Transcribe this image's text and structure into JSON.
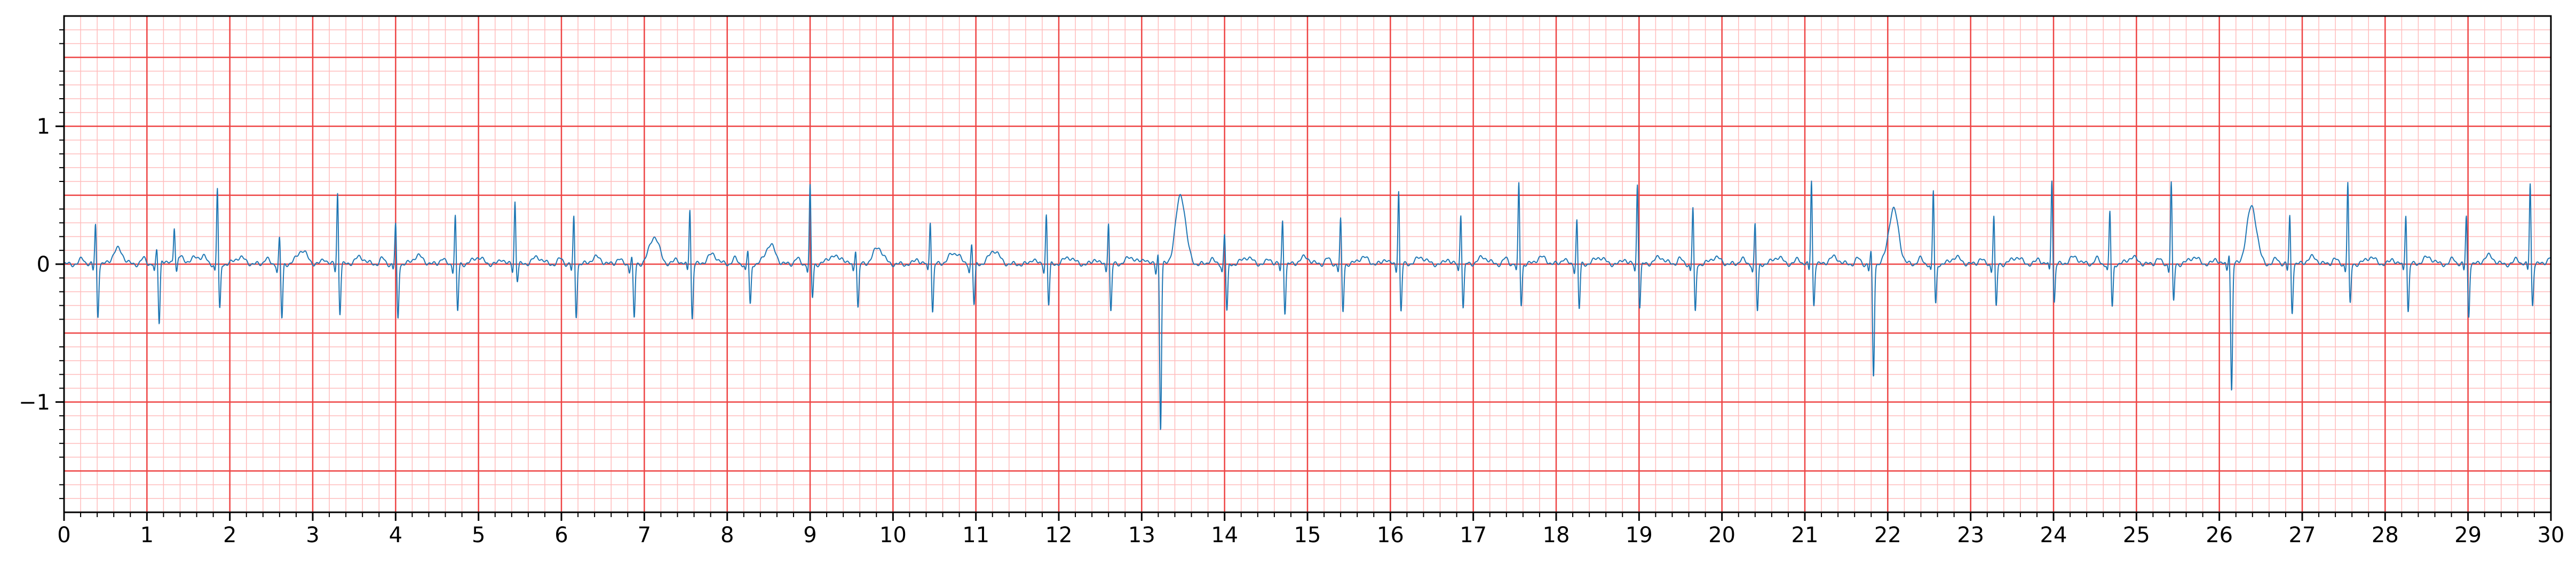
{
  "chart_data": {
    "type": "line",
    "title": "",
    "xlabel": "",
    "ylabel": "",
    "xlim": [
      0,
      30
    ],
    "ylim": [
      -1.8,
      1.8
    ],
    "xticks": [
      0,
      1,
      2,
      3,
      4,
      5,
      6,
      7,
      8,
      9,
      10,
      11,
      12,
      13,
      14,
      15,
      16,
      17,
      18,
      19,
      20,
      21,
      22,
      23,
      24,
      25,
      26,
      27,
      28,
      29,
      30
    ],
    "xtick_labels": [
      "0",
      "1",
      "2",
      "3",
      "4",
      "5",
      "6",
      "7",
      "8",
      "9",
      "10",
      "11",
      "12",
      "13",
      "14",
      "15",
      "16",
      "17",
      "18",
      "19",
      "20",
      "21",
      "22",
      "23",
      "24",
      "25",
      "26",
      "27",
      "28",
      "29",
      "30"
    ],
    "yticks": [
      -1,
      0,
      1
    ],
    "ytick_labels": [
      "−1",
      "0",
      "1"
    ],
    "grid": {
      "major_x_step": 1,
      "minor_x_step": 0.2,
      "major_y_step": 0.5,
      "minor_y_step": 0.1
    },
    "colors": {
      "line": "#1f77b4",
      "major_grid": "#ee4444",
      "minor_grid": "#ffbcbc",
      "axes": "#000000"
    },
    "series": [
      {
        "beats": [
          {
            "t": 0.38,
            "r": 0.3,
            "s": -0.38,
            "tw": 0.11,
            "q": -0.05
          },
          {
            "t": 1.12,
            "r": 0.1,
            "s": -0.46,
            "tw": 0.05,
            "q": -0.06
          },
          {
            "t": 1.33,
            "r": 0.25,
            "s": -0.1,
            "tw": 0.05,
            "q": 0.0
          },
          {
            "t": 1.85,
            "r": 0.56,
            "s": -0.34,
            "tw": 0.05,
            "q": -0.05
          },
          {
            "t": 2.6,
            "r": 0.2,
            "s": -0.4,
            "tw": 0.1,
            "q": -0.05
          },
          {
            "t": 3.3,
            "r": 0.53,
            "s": -0.36,
            "tw": 0.05,
            "q": -0.05
          },
          {
            "t": 4.0,
            "r": 0.3,
            "s": -0.4,
            "tw": 0.06,
            "q": -0.04
          },
          {
            "t": 4.72,
            "r": 0.36,
            "s": -0.35,
            "tw": 0.05,
            "q": -0.05
          },
          {
            "t": 5.44,
            "r": 0.46,
            "s": -0.12,
            "tw": 0.05,
            "q": -0.05
          },
          {
            "t": 6.15,
            "r": 0.35,
            "s": -0.38,
            "tw": 0.05,
            "q": -0.05
          },
          {
            "t": 6.85,
            "r": 0.06,
            "s": -0.4,
            "tw": 0.2,
            "q": -0.05
          },
          {
            "t": 7.55,
            "r": 0.42,
            "s": -0.4,
            "tw": 0.07,
            "q": -0.05
          },
          {
            "t": 8.25,
            "r": 0.1,
            "s": -0.3,
            "tw": 0.14,
            "q": -0.05
          },
          {
            "t": 9.0,
            "r": 0.57,
            "s": -0.25,
            "tw": 0.06,
            "q": -0.05
          },
          {
            "t": 9.55,
            "r": 0.12,
            "s": -0.32,
            "tw": 0.12,
            "q": -0.05
          },
          {
            "t": 10.45,
            "r": 0.33,
            "s": -0.35,
            "tw": 0.07,
            "q": -0.05
          },
          {
            "t": 10.95,
            "r": 0.15,
            "s": -0.3,
            "tw": 0.1,
            "q": -0.05
          },
          {
            "t": 11.85,
            "r": 0.37,
            "s": -0.3,
            "tw": 0.05,
            "q": -0.05
          },
          {
            "t": 12.6,
            "r": 0.32,
            "s": -0.35,
            "tw": 0.05,
            "q": -0.05
          },
          {
            "t": 13.2,
            "r": 0.1,
            "s": -1.2,
            "tw": 0.5,
            "q": -0.06
          },
          {
            "t": 14.0,
            "r": 0.23,
            "s": -0.35,
            "tw": 0.05,
            "q": -0.05
          },
          {
            "t": 14.7,
            "r": 0.33,
            "s": -0.35,
            "tw": 0.05,
            "q": -0.05
          },
          {
            "t": 15.4,
            "r": 0.33,
            "s": -0.35,
            "tw": 0.05,
            "q": -0.05
          },
          {
            "t": 16.1,
            "r": 0.55,
            "s": -0.35,
            "tw": 0.05,
            "q": -0.05
          },
          {
            "t": 16.85,
            "r": 0.38,
            "s": -0.32,
            "tw": 0.05,
            "q": -0.05
          },
          {
            "t": 17.55,
            "r": 0.59,
            "s": -0.3,
            "tw": 0.05,
            "q": -0.05
          },
          {
            "t": 18.25,
            "r": 0.33,
            "s": -0.33,
            "tw": 0.05,
            "q": -0.05
          },
          {
            "t": 18.98,
            "r": 0.6,
            "s": -0.32,
            "tw": 0.05,
            "q": -0.05
          },
          {
            "t": 19.65,
            "r": 0.42,
            "s": -0.36,
            "tw": 0.05,
            "q": -0.05
          },
          {
            "t": 20.4,
            "r": 0.3,
            "s": -0.35,
            "tw": 0.05,
            "q": -0.05
          },
          {
            "t": 21.08,
            "r": 0.62,
            "s": -0.3,
            "tw": 0.05,
            "q": -0.05
          },
          {
            "t": 21.8,
            "r": 0.1,
            "s": -0.82,
            "tw": 0.4,
            "q": -0.05
          },
          {
            "t": 22.55,
            "r": 0.54,
            "s": -0.3,
            "tw": 0.05,
            "q": -0.05
          },
          {
            "t": 23.28,
            "r": 0.36,
            "s": -0.32,
            "tw": 0.05,
            "q": -0.05
          },
          {
            "t": 23.98,
            "r": 0.63,
            "s": -0.28,
            "tw": 0.05,
            "q": -0.05
          },
          {
            "t": 24.68,
            "r": 0.39,
            "s": -0.32,
            "tw": 0.05,
            "q": -0.05
          },
          {
            "t": 25.42,
            "r": 0.6,
            "s": -0.28,
            "tw": 0.05,
            "q": -0.05
          },
          {
            "t": 26.12,
            "r": 0.1,
            "s": -0.92,
            "tw": 0.42,
            "q": -0.05
          },
          {
            "t": 26.85,
            "r": 0.36,
            "s": -0.35,
            "tw": 0.05,
            "q": -0.05
          },
          {
            "t": 27.55,
            "r": 0.6,
            "s": -0.3,
            "tw": 0.05,
            "q": -0.05
          },
          {
            "t": 28.25,
            "r": 0.38,
            "s": -0.35,
            "tw": 0.05,
            "q": -0.05
          },
          {
            "t": 28.98,
            "r": 0.36,
            "s": -0.38,
            "tw": 0.06,
            "q": -0.05
          },
          {
            "t": 29.75,
            "r": 0.6,
            "s": -0.3,
            "tw": 0.05,
            "q": -0.05
          }
        ]
      }
    ]
  }
}
